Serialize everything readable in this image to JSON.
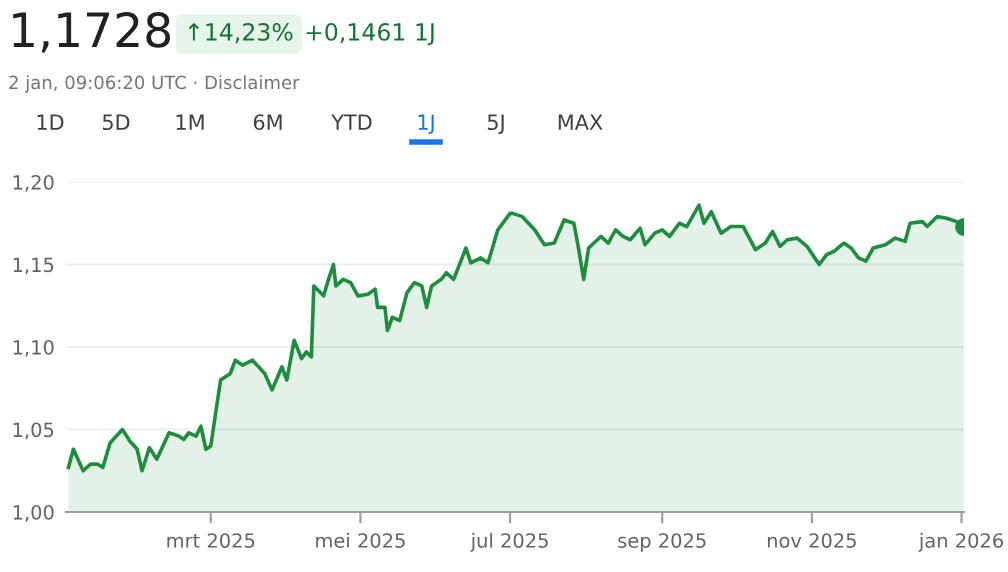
{
  "chart_data": {
    "type": "area",
    "title": "1,1728",
    "subtitle": "2 jan, 09:06:20 UTC · Disclaimer",
    "annotations": [
      "↑14,23%",
      "+0,1461 1J",
      "1D",
      "5D",
      "1M",
      "6M",
      "YTD",
      "1J",
      "5J",
      "MAX"
    ],
    "x": [
      "2025-01-02",
      "2025-01-04",
      "2025-01-08",
      "2025-01-11",
      "2025-01-14",
      "2025-01-16",
      "2025-01-19",
      "2025-01-24",
      "2025-01-27",
      "2025-01-30",
      "2025-02-01",
      "2025-02-04",
      "2025-02-07",
      "2025-02-12",
      "2025-02-16",
      "2025-02-18",
      "2025-02-20",
      "2025-02-23",
      "2025-02-25",
      "2025-02-27",
      "2025-03-01",
      "2025-03-05",
      "2025-03-09",
      "2025-03-11",
      "2025-03-14",
      "2025-03-18",
      "2025-03-23",
      "2025-03-26",
      "2025-03-30",
      "2025-04-01",
      "2025-04-04",
      "2025-04-07",
      "2025-04-09",
      "2025-04-11",
      "2025-04-12",
      "2025-04-16",
      "2025-04-18",
      "2025-04-20",
      "2025-04-21",
      "2025-04-24",
      "2025-04-27",
      "2025-04-30",
      "2025-05-04",
      "2025-05-07",
      "2025-05-08",
      "2025-05-11",
      "2025-05-12",
      "2025-05-14",
      "2025-05-17",
      "2025-05-20",
      "2025-05-23",
      "2025-05-26",
      "2025-05-28",
      "2025-05-30",
      "2025-06-03",
      "2025-06-05",
      "2025-06-08",
      "2025-06-13",
      "2025-06-15",
      "2025-06-19",
      "2025-06-22",
      "2025-06-26",
      "2025-07-01",
      "2025-07-02",
      "2025-07-06",
      "2025-07-11",
      "2025-07-15",
      "2025-07-19",
      "2025-07-23",
      "2025-07-27",
      "2025-07-29",
      "2025-07-31",
      "2025-08-02",
      "2025-08-07",
      "2025-08-10",
      "2025-08-13",
      "2025-08-16",
      "2025-08-19",
      "2025-08-23",
      "2025-08-25",
      "2025-08-29",
      "2025-09-01",
      "2025-09-04",
      "2025-09-08",
      "2025-09-11",
      "2025-09-16",
      "2025-09-18",
      "2025-09-21",
      "2025-09-25",
      "2025-09-29",
      "2025-10-04",
      "2025-10-09",
      "2025-10-13",
      "2025-10-16",
      "2025-10-19",
      "2025-10-22",
      "2025-10-26",
      "2025-10-30",
      "2025-11-04",
      "2025-11-07",
      "2025-11-10",
      "2025-11-14",
      "2025-11-17",
      "2025-11-20",
      "2025-11-23",
      "2025-11-26",
      "2025-12-01",
      "2025-12-05",
      "2025-12-09",
      "2025-12-11",
      "2025-12-16",
      "2025-12-18",
      "2025-12-22",
      "2025-12-26",
      "2025-12-30",
      "2026-01-02"
    ],
    "series": [
      {
        "color": "#1e8e3e",
        "values": [
          1.027,
          1.038,
          1.025,
          1.029,
          1.029,
          1.027,
          1.042,
          1.05,
          1.043,
          1.038,
          1.025,
          1.039,
          1.032,
          1.048,
          1.046,
          1.044,
          1.048,
          1.046,
          1.052,
          1.038,
          1.04,
          1.08,
          1.084,
          1.092,
          1.089,
          1.092,
          1.084,
          1.074,
          1.088,
          1.08,
          1.104,
          1.093,
          1.097,
          1.094,
          1.137,
          1.131,
          1.141,
          1.15,
          1.137,
          1.141,
          1.139,
          1.131,
          1.132,
          1.135,
          1.124,
          1.124,
          1.11,
          1.118,
          1.116,
          1.133,
          1.139,
          1.137,
          1.124,
          1.137,
          1.141,
          1.145,
          1.141,
          1.16,
          1.151,
          1.154,
          1.151,
          1.171,
          1.181,
          1.181,
          1.179,
          1.171,
          1.162,
          1.163,
          1.177,
          1.175,
          1.159,
          1.141,
          1.16,
          1.167,
          1.163,
          1.171,
          1.167,
          1.165,
          1.172,
          1.162,
          1.169,
          1.171,
          1.167,
          1.175,
          1.173,
          1.186,
          1.175,
          1.182,
          1.169,
          1.173,
          1.173,
          1.159,
          1.163,
          1.17,
          1.161,
          1.165,
          1.166,
          1.161,
          1.15,
          1.156,
          1.158,
          1.163,
          1.16,
          1.154,
          1.152,
          1.16,
          1.162,
          1.166,
          1.164,
          1.175,
          1.176,
          1.173,
          1.179,
          1.178,
          1.176,
          1.1728
        ]
      }
    ],
    "xlim": [
      "2025-01-01",
      "2026-01-02"
    ],
    "xticks": [
      {
        "value": "2025-03-01",
        "label": "mrt 2025"
      },
      {
        "value": "2025-05-01",
        "label": "mei 2025"
      },
      {
        "value": "2025-07-01",
        "label": "jul 2025"
      },
      {
        "value": "2025-09-01",
        "label": "sep 2025"
      },
      {
        "value": "2025-11-01",
        "label": "nov 2025"
      },
      {
        "value": "2026-01-01",
        "label": "jan 2026"
      }
    ],
    "ylim": [
      1.0,
      1.2
    ],
    "yticks": [
      {
        "value": 1.0,
        "label": "1,00"
      },
      {
        "value": 1.05,
        "label": "1,05"
      },
      {
        "value": 1.1,
        "label": "1,10"
      },
      {
        "value": 1.15,
        "label": "1,15"
      },
      {
        "value": 1.2,
        "label": "1,20"
      }
    ],
    "grid": "y"
  }
}
